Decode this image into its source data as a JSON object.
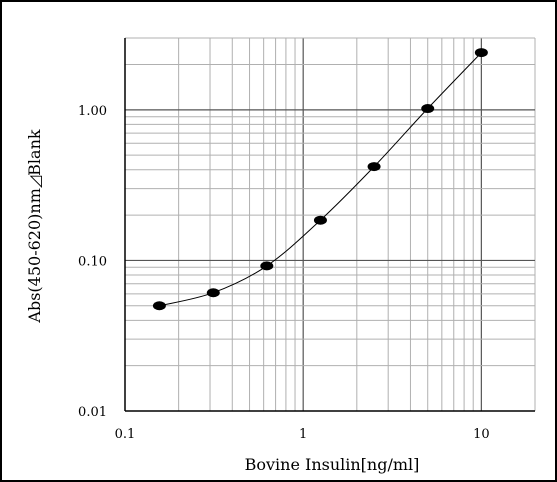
{
  "chart_data": {
    "type": "line",
    "title": "",
    "xlabel": "Bovine Insulin[ng/ml]",
    "ylabel": "Abs(450-620)nm◿Blank",
    "x_scale": "log",
    "y_scale": "log",
    "xlim": [
      0.1,
      20
    ],
    "ylim": [
      0.01,
      3
    ],
    "x_ticks": [
      {
        "value": 0.1,
        "label": "0.1"
      },
      {
        "value": 1,
        "label": "1"
      },
      {
        "value": 10,
        "label": "10"
      }
    ],
    "y_ticks": [
      {
        "value": 0.01,
        "label": "0.01"
      },
      {
        "value": 0.1,
        "label": "0.10"
      },
      {
        "value": 1,
        "label": "1.00"
      }
    ],
    "grid": true,
    "legend": "none",
    "series": [
      {
        "x": [
          0.156,
          0.313,
          0.625,
          1.25,
          2.5,
          5,
          10
        ],
        "y": [
          0.05,
          0.061,
          0.092,
          0.185,
          0.42,
          1.02,
          2.4
        ]
      }
    ],
    "colors": {
      "line": "#000000",
      "marker": "#000000",
      "grid_major": "#555555",
      "grid_minor": "#b0b0b0"
    }
  }
}
